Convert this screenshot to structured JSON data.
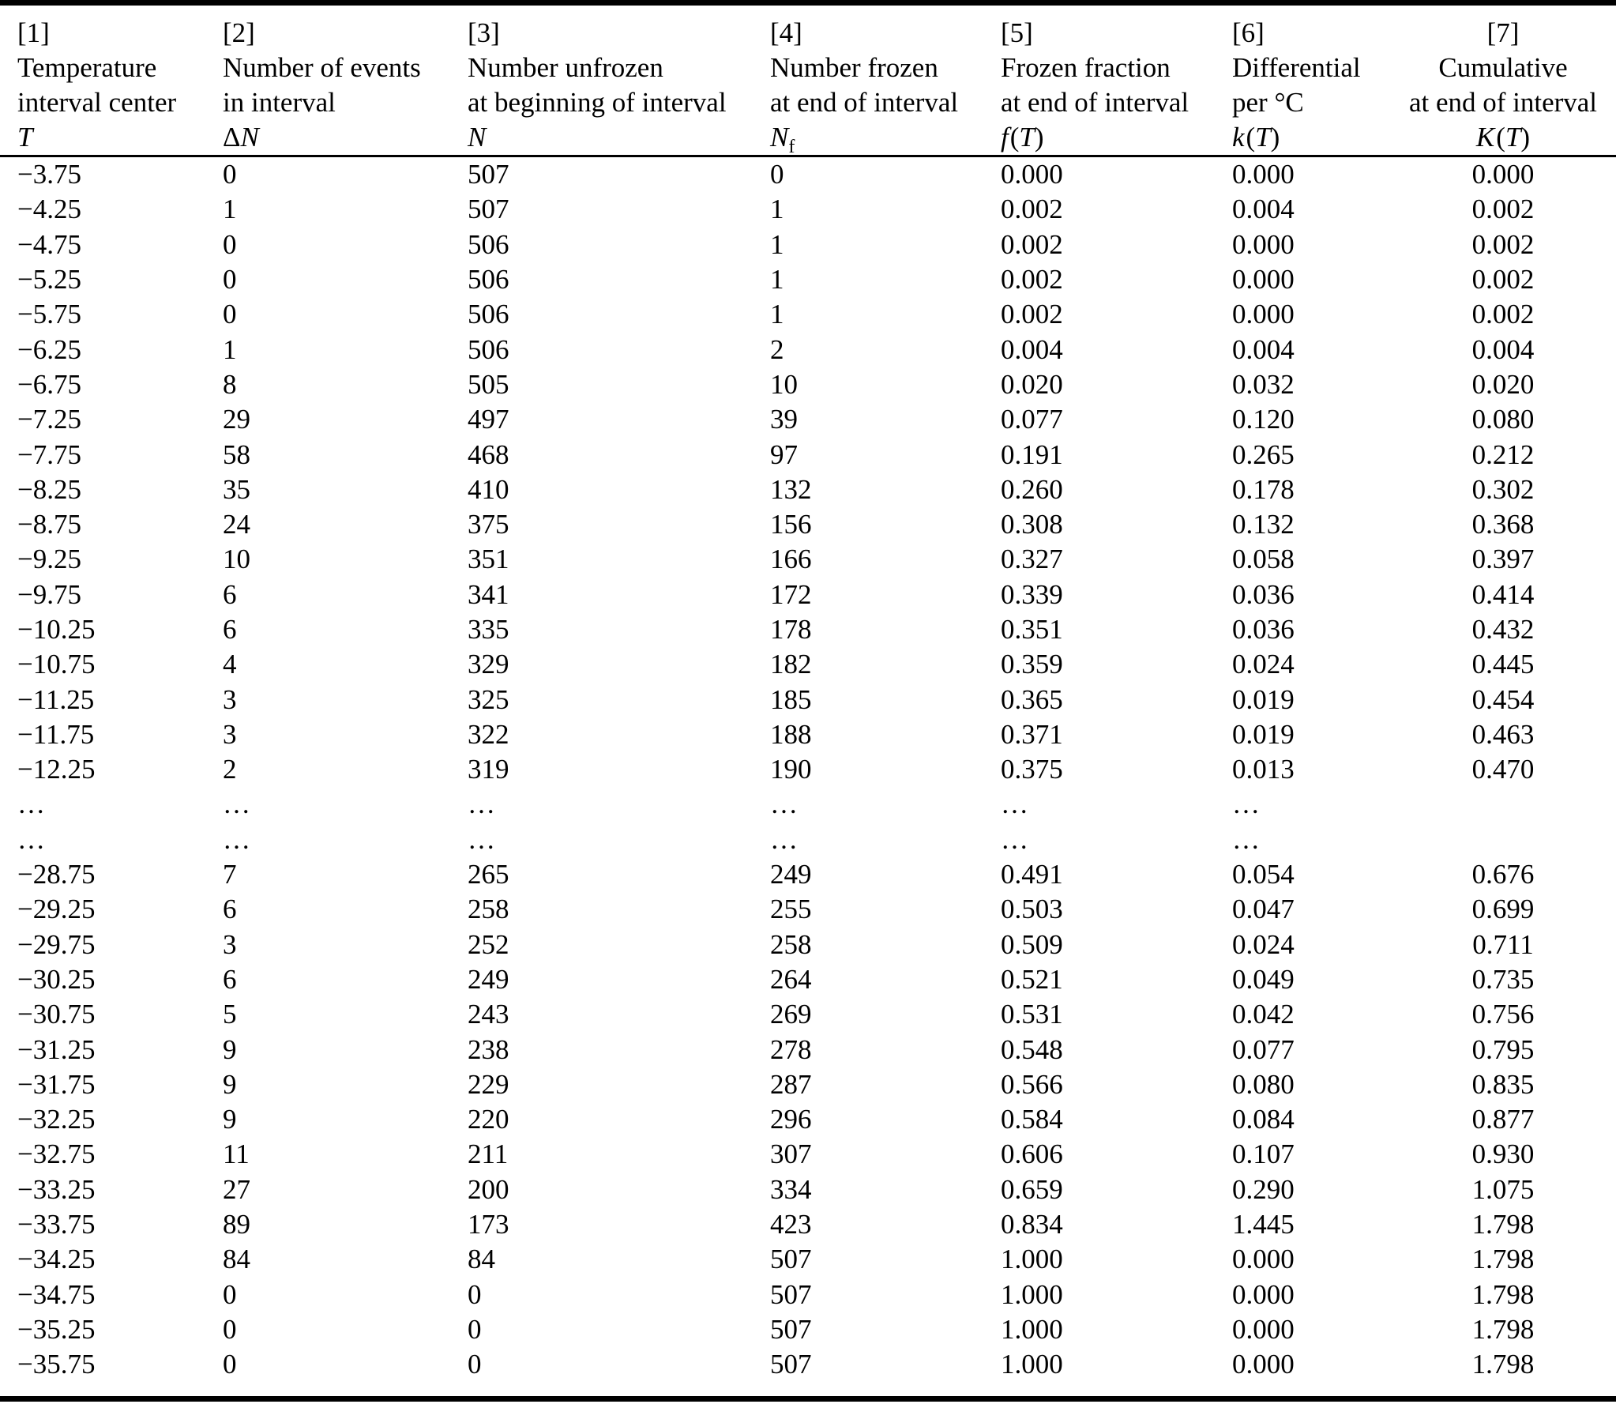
{
  "colors": {
    "text": "#000000",
    "background": "#ffffff",
    "rule": "#000000"
  },
  "table": {
    "columns": [
      {
        "tag": "[1]",
        "line1": "Temperature",
        "line2": "interval center",
        "sym": {
          "it": "T"
        }
      },
      {
        "tag": "[2]",
        "line1": "Number of events",
        "line2": "in interval",
        "sym": {
          "pre": "Δ",
          "it": "N"
        }
      },
      {
        "tag": "[3]",
        "line1": "Number unfrozen",
        "line2": "at beginning of interval",
        "sym": {
          "it": "N"
        }
      },
      {
        "tag": "[4]",
        "line1": "Number frozen",
        "line2": "at end of interval",
        "sym": {
          "it": "N",
          "sub": "f"
        }
      },
      {
        "tag": "[5]",
        "line1": "Frozen fraction",
        "line2": "at end of interval",
        "sym": {
          "it": "f",
          "arg": "T"
        }
      },
      {
        "tag": "[6]",
        "line1": "Differential",
        "line2": "per °C",
        "sym": {
          "it": "k",
          "arg": "T"
        }
      },
      {
        "tag": "[7]",
        "line1": "Cumulative",
        "line2": "at end of interval",
        "sym": {
          "it": "K",
          "arg": "T"
        }
      }
    ],
    "rows": [
      [
        "−3.75",
        "0",
        "507",
        "0",
        "0.000",
        "0.000",
        "0.000"
      ],
      [
        "−4.25",
        "1",
        "507",
        "1",
        "0.002",
        "0.004",
        "0.002"
      ],
      [
        "−4.75",
        "0",
        "506",
        "1",
        "0.002",
        "0.000",
        "0.002"
      ],
      [
        "−5.25",
        "0",
        "506",
        "1",
        "0.002",
        "0.000",
        "0.002"
      ],
      [
        "−5.75",
        "0",
        "506",
        "1",
        "0.002",
        "0.000",
        "0.002"
      ],
      [
        "−6.25",
        "1",
        "506",
        "2",
        "0.004",
        "0.004",
        "0.004"
      ],
      [
        "−6.75",
        "8",
        "505",
        "10",
        "0.020",
        "0.032",
        "0.020"
      ],
      [
        "−7.25",
        "29",
        "497",
        "39",
        "0.077",
        "0.120",
        "0.080"
      ],
      [
        "−7.75",
        "58",
        "468",
        "97",
        "0.191",
        "0.265",
        "0.212"
      ],
      [
        "−8.25",
        "35",
        "410",
        "132",
        "0.260",
        "0.178",
        "0.302"
      ],
      [
        "−8.75",
        "24",
        "375",
        "156",
        "0.308",
        "0.132",
        "0.368"
      ],
      [
        "−9.25",
        "10",
        "351",
        "166",
        "0.327",
        "0.058",
        "0.397"
      ],
      [
        "−9.75",
        "6",
        "341",
        "172",
        "0.339",
        "0.036",
        "0.414"
      ],
      [
        "−10.25",
        "6",
        "335",
        "178",
        "0.351",
        "0.036",
        "0.432"
      ],
      [
        "−10.75",
        "4",
        "329",
        "182",
        "0.359",
        "0.024",
        "0.445"
      ],
      [
        "−11.25",
        "3",
        "325",
        "185",
        "0.365",
        "0.019",
        "0.454"
      ],
      [
        "−11.75",
        "3",
        "322",
        "188",
        "0.371",
        "0.019",
        "0.463"
      ],
      [
        "−12.25",
        "2",
        "319",
        "190",
        "0.375",
        "0.013",
        "0.470"
      ],
      [
        "…",
        "…",
        "…",
        "…",
        "…",
        "…",
        ""
      ],
      [
        "…",
        "…",
        "…",
        "…",
        "…",
        "…",
        ""
      ],
      [
        "−28.75",
        "7",
        "265",
        "249",
        "0.491",
        "0.054",
        "0.676"
      ],
      [
        "−29.25",
        "6",
        "258",
        "255",
        "0.503",
        "0.047",
        "0.699"
      ],
      [
        "−29.75",
        "3",
        "252",
        "258",
        "0.509",
        "0.024",
        "0.711"
      ],
      [
        "−30.25",
        "6",
        "249",
        "264",
        "0.521",
        "0.049",
        "0.735"
      ],
      [
        "−30.75",
        "5",
        "243",
        "269",
        "0.531",
        "0.042",
        "0.756"
      ],
      [
        "−31.25",
        "9",
        "238",
        "278",
        "0.548",
        "0.077",
        "0.795"
      ],
      [
        "−31.75",
        "9",
        "229",
        "287",
        "0.566",
        "0.080",
        "0.835"
      ],
      [
        "−32.25",
        "9",
        "220",
        "296",
        "0.584",
        "0.084",
        "0.877"
      ],
      [
        "−32.75",
        "11",
        "211",
        "307",
        "0.606",
        "0.107",
        "0.930"
      ],
      [
        "−33.25",
        "27",
        "200",
        "334",
        "0.659",
        "0.290",
        "1.075"
      ],
      [
        "−33.75",
        "89",
        "173",
        "423",
        "0.834",
        "1.445",
        "1.798"
      ],
      [
        "−34.25",
        "84",
        "84",
        "507",
        "1.000",
        "0.000",
        "1.798"
      ],
      [
        "−34.75",
        "0",
        "0",
        "507",
        "1.000",
        "0.000",
        "1.798"
      ],
      [
        "−35.25",
        "0",
        "0",
        "507",
        "1.000",
        "0.000",
        "1.798"
      ],
      [
        "−35.75",
        "0",
        "0",
        "507",
        "1.000",
        "0.000",
        "1.798"
      ]
    ]
  }
}
